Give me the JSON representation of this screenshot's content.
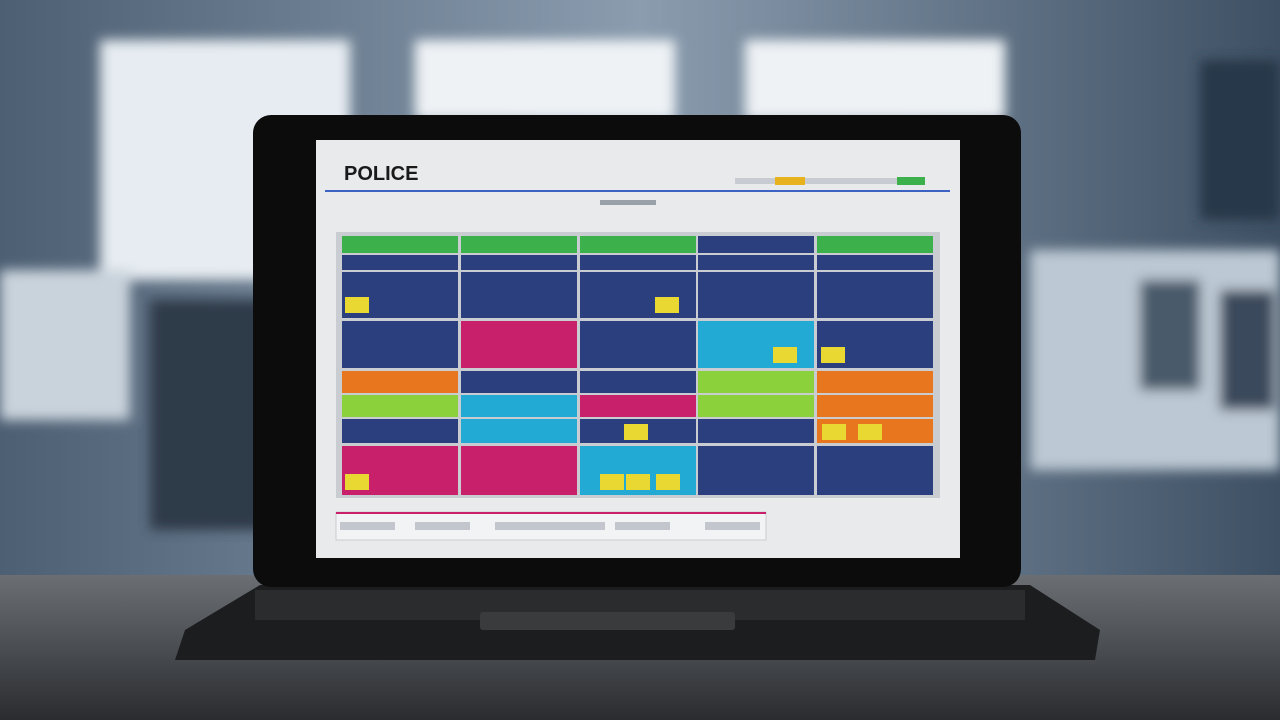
{
  "header": {
    "title": "POLICE"
  }
}
